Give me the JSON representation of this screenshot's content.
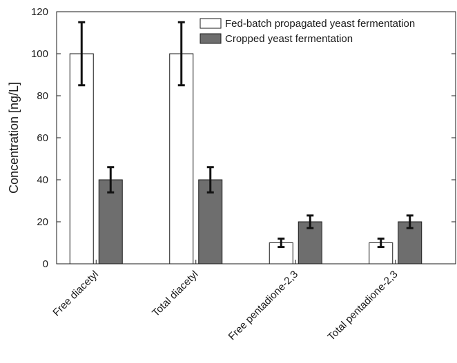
{
  "chart_data": {
    "type": "bar",
    "categories": [
      "Free diacetyl",
      "Total diacetyl",
      "Free pentadione-2,3",
      "Total pentadione-2,3"
    ],
    "series": [
      {
        "name": "Fed-batch propagated yeast fermentation",
        "values": [
          100,
          100,
          10,
          10
        ],
        "error": [
          15,
          15,
          2,
          2
        ],
        "color": "#ffffff"
      },
      {
        "name": "Cropped yeast fermentation",
        "values": [
          40,
          40,
          20,
          20
        ],
        "error": [
          6,
          6,
          3,
          3
        ],
        "color": "#6e6e6e"
      }
    ],
    "xlabel": "",
    "ylabel": "Concentration [ng/L]",
    "ylim": [
      0,
      120
    ],
    "yticks": [
      0,
      20,
      40,
      60,
      80,
      100,
      120
    ],
    "legend_position": "top-right",
    "grid": false
  }
}
